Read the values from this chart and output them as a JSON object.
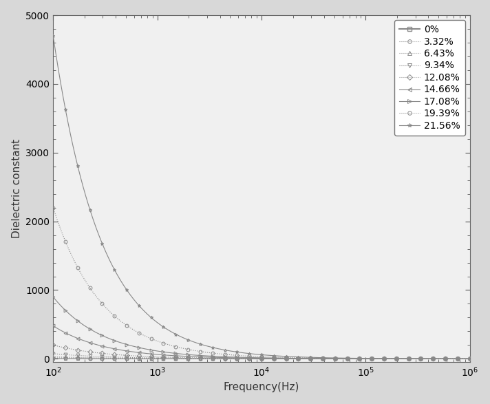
{
  "series": [
    {
      "label": "0%",
      "marker": "s",
      "linestyle": "-",
      "A": 4.5,
      "alpha": 0.55
    },
    {
      "label": "3.32%",
      "marker": "o",
      "linestyle": ":",
      "A": 12.0,
      "alpha": 0.65
    },
    {
      "label": "6.43%",
      "marker": "^",
      "linestyle": ":",
      "A": 28.0,
      "alpha": 0.72
    },
    {
      "label": "9.34%",
      "marker": "v",
      "linestyle": ":",
      "A": 75.0,
      "alpha": 0.8
    },
    {
      "label": "12.08%",
      "marker": "D",
      "linestyle": ":",
      "A": 200.0,
      "alpha": 0.85
    },
    {
      "label": "14.66%",
      "marker": "<",
      "linestyle": "-",
      "A": 480.0,
      "alpha": 0.88
    },
    {
      "label": "17.08%",
      "marker": ">",
      "linestyle": "-",
      "A": 900.0,
      "alpha": 0.9
    },
    {
      "label": "19.39%",
      "marker": "o",
      "linestyle": ":",
      "A": 2200.0,
      "alpha": 0.93
    },
    {
      "label": "21.56%",
      "marker": "*",
      "linestyle": "-",
      "A": 4700.0,
      "alpha": 0.95
    }
  ],
  "xlim": [
    100,
    1000000
  ],
  "ylim": [
    -50,
    5000
  ],
  "xlabel": "Frequency(Hz)",
  "ylabel": "Dielectric constant",
  "background_color": "#d8d8d8",
  "plot_bg_color": "#f0f0f0",
  "line_color": "#888888",
  "marker_color": "#888888"
}
